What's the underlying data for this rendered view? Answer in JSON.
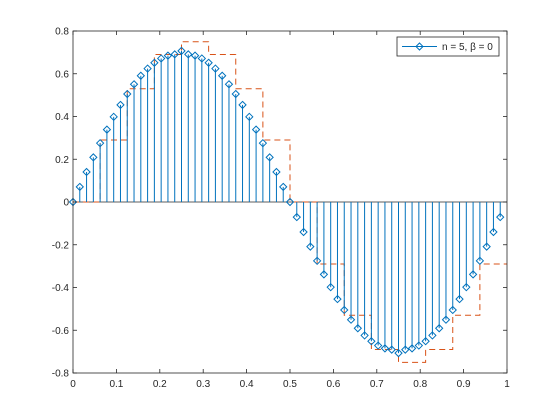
{
  "chart_data": {
    "type": "stem",
    "xlim": [
      0,
      1
    ],
    "ylim": [
      -0.8,
      0.8
    ],
    "x_ticks": [
      "0",
      "0.1",
      "0.2",
      "0.3",
      "0.4",
      "0.5",
      "0.6",
      "0.7",
      "0.8",
      "0.9",
      "1"
    ],
    "y_ticks": [
      "0.8",
      "0.6",
      "0.4",
      "0.2",
      "0",
      "-0.2",
      "-0.4",
      "-0.6",
      "-0.8"
    ],
    "x_tick_values": [
      0,
      0.1,
      0.2,
      0.3,
      0.4,
      0.5,
      0.6,
      0.7,
      0.8,
      0.9,
      1
    ],
    "y_tick_values": [
      0.8,
      0.6,
      0.4,
      0.2,
      0,
      -0.2,
      -0.4,
      -0.6,
      -0.8
    ],
    "legend": {
      "label": "n = 5, β = 0",
      "placement": "top-right"
    },
    "series": [
      {
        "name": "n = 5, β = 0",
        "kind": "stem",
        "color": "#0072bd",
        "marker": "diamond",
        "x": [
          0,
          0.015625,
          0.03125,
          0.046875,
          0.0625,
          0.078125,
          0.09375,
          0.109375,
          0.125,
          0.140625,
          0.15625,
          0.171875,
          0.1875,
          0.203125,
          0.21875,
          0.234375,
          0.25,
          0.265625,
          0.28125,
          0.296875,
          0.3125,
          0.328125,
          0.34375,
          0.359375,
          0.375,
          0.390625,
          0.40625,
          0.421875,
          0.4375,
          0.453125,
          0.46875,
          0.484375,
          0.5,
          0.515625,
          0.53125,
          0.546875,
          0.5625,
          0.578125,
          0.59375,
          0.609375,
          0.625,
          0.640625,
          0.65625,
          0.671875,
          0.6875,
          0.703125,
          0.71875,
          0.734375,
          0.75,
          0.765625,
          0.78125,
          0.796875,
          0.8125,
          0.828125,
          0.84375,
          0.859375,
          0.875,
          0.890625,
          0.90625,
          0.921875,
          0.9375,
          0.953125,
          0.96875,
          0.984375
        ],
        "y": [
          0,
          0.0706,
          0.1405,
          0.2089,
          0.2752,
          0.3386,
          0.3985,
          0.4542,
          0.5051,
          0.5507,
          0.5906,
          0.6242,
          0.6513,
          0.6716,
          0.6848,
          0.6908,
          0.7071,
          0.6908,
          0.6848,
          0.6716,
          0.6513,
          0.6242,
          0.5906,
          0.5507,
          0.5051,
          0.4542,
          0.3985,
          0.3386,
          0.2752,
          0.2089,
          0.1405,
          0.0706,
          0,
          -0.0706,
          -0.1405,
          -0.2089,
          -0.2752,
          -0.3386,
          -0.3985,
          -0.4542,
          -0.5051,
          -0.5507,
          -0.5906,
          -0.6242,
          -0.6513,
          -0.6716,
          -0.6848,
          -0.6908,
          -0.7071,
          -0.6908,
          -0.6848,
          -0.6716,
          -0.6513,
          -0.6242,
          -0.5906,
          -0.5507,
          -0.5051,
          -0.4542,
          -0.3985,
          -0.3386,
          -0.2752,
          -0.2089,
          -0.1405,
          -0.0706
        ]
      },
      {
        "kind": "stairs",
        "color": "#d95319",
        "line_style": "dashed",
        "x": [
          0,
          0.0625,
          0.125,
          0.1875,
          0.25,
          0.3125,
          0.375,
          0.4375,
          0.5,
          0.5625,
          0.625,
          0.6875,
          0.75,
          0.8125,
          0.875,
          0.9375,
          1
        ],
        "y": [
          0,
          0.29,
          0.53,
          0.69,
          0.75,
          0.69,
          0.53,
          0.29,
          0,
          -0.29,
          -0.53,
          -0.69,
          -0.75,
          -0.69,
          -0.53,
          -0.29,
          -0.29
        ]
      }
    ],
    "grid": false
  }
}
